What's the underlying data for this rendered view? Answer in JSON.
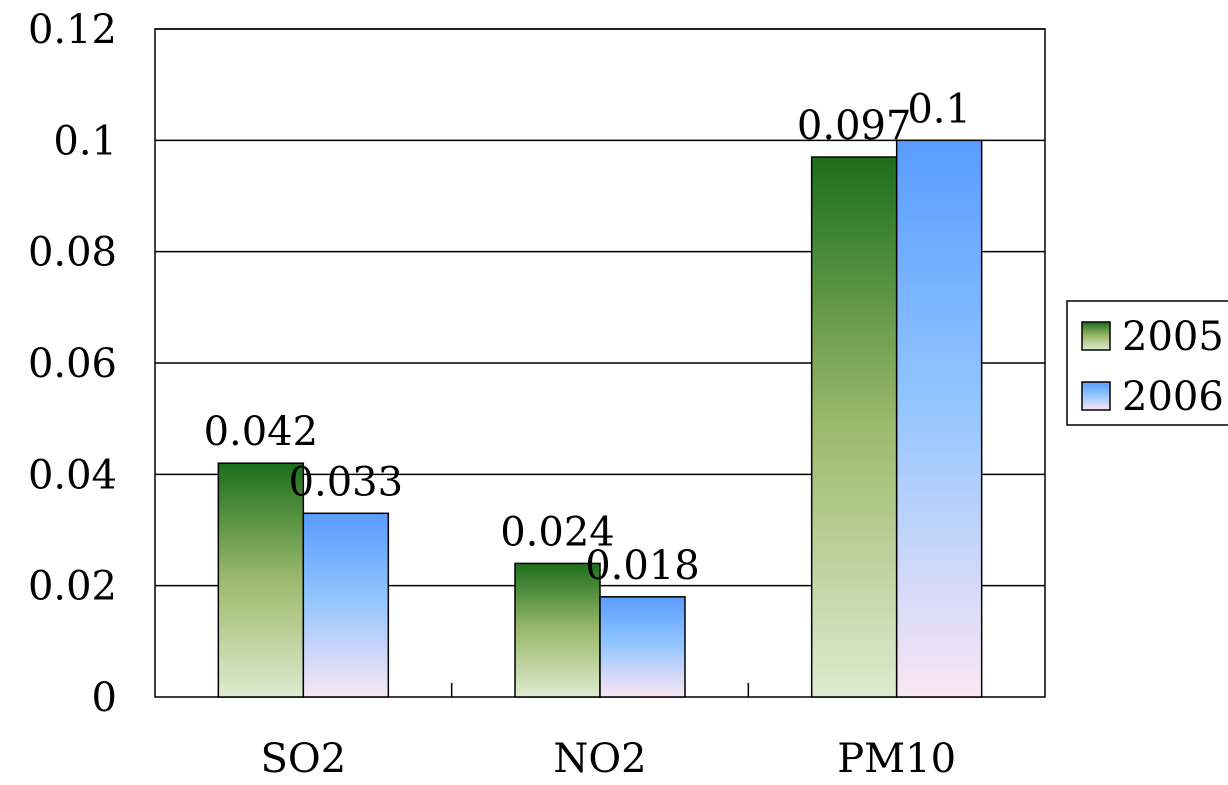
{
  "chart_data": {
    "type": "bar",
    "categories": [
      "SO2",
      "NO2",
      "PM10"
    ],
    "series": [
      {
        "name": "2005",
        "values": [
          0.042,
          0.024,
          0.097
        ],
        "data_labels": [
          "0.042",
          "0.024",
          "0.097"
        ]
      },
      {
        "name": "2006",
        "values": [
          0.033,
          0.018,
          0.1
        ],
        "data_labels": [
          "0.033",
          "0.018",
          "0.1"
        ]
      }
    ],
    "ylim": [
      0,
      0.12
    ],
    "yticks": [
      0,
      0.02,
      0.04,
      0.06,
      0.08,
      0.1,
      0.12
    ],
    "ytick_labels": [
      "0",
      "0.02",
      "0.04",
      "0.06",
      "0.08",
      "0.1",
      "0.12"
    ],
    "grid": true,
    "legend_position": "right",
    "colors": {
      "series_2005_top": "#1c6e1c",
      "series_2005_mid": "#9cba6c",
      "series_2005_bottom": "#ddebd0",
      "series_2006_top": "#5a9cff",
      "series_2006_mid": "#8fc4ff",
      "series_2006_bottom": "#fbe6f4",
      "gridline": "#000000",
      "axis": "#000000"
    }
  }
}
